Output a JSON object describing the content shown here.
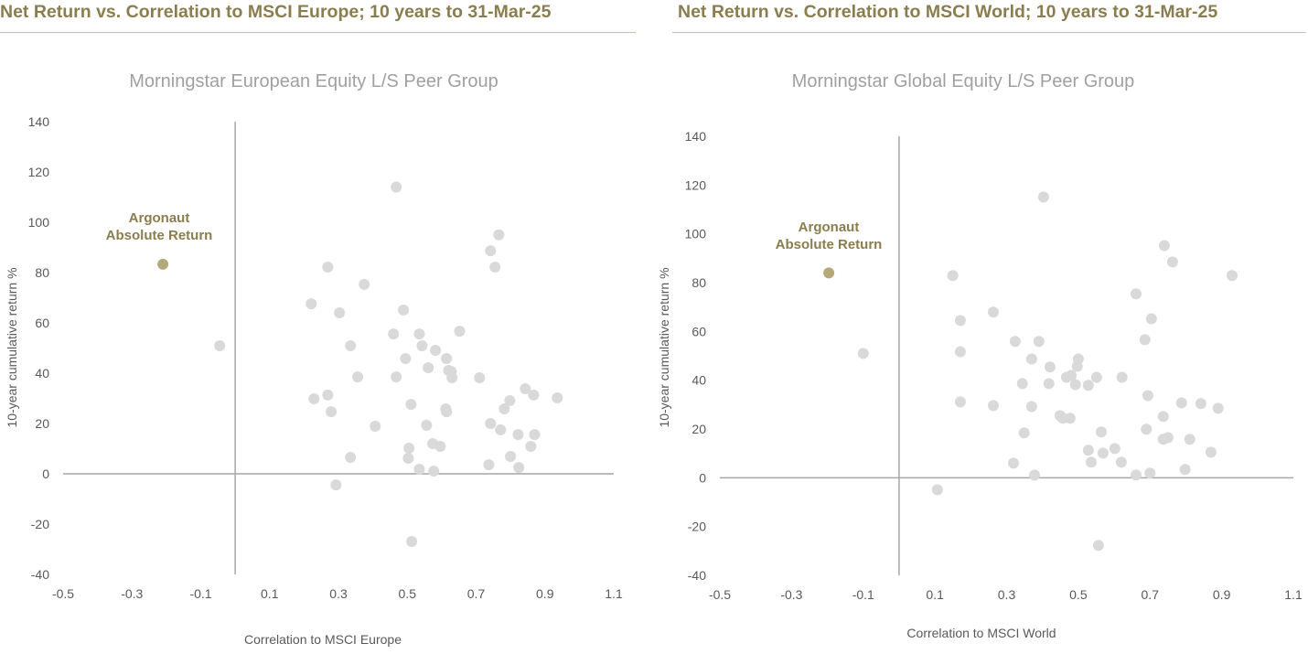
{
  "headers": [
    "Net Return vs. Correlation to MSCI Europe; 10 years to 31-Mar-25",
    "Net Return vs. Correlation to MSCI World; 10 years to 31-Mar-25"
  ],
  "colors": {
    "header": "#8a7d4e",
    "highlight": "#b5a97a",
    "peer": "#d9d9d9",
    "axis": "#a6a6a6",
    "tick": "#595959",
    "title": "#a0a0a0"
  },
  "chart_data": [
    {
      "type": "scatter",
      "title": "Morningstar European Equity L/S Peer Group",
      "xlabel": "Correlation to MSCI Europe",
      "ylabel": "10-year cumulative return %",
      "xlim": [
        -0.5,
        1.1
      ],
      "ylim": [
        -40,
        140
      ],
      "xticks": [
        "-0.5",
        "-0.3",
        "-0.1",
        "0.1",
        "0.3",
        "0.5",
        "0.7",
        "0.9",
        "1.1"
      ],
      "yticks": [
        "140",
        "120",
        "100",
        "80",
        "60",
        "40",
        "20",
        "0",
        "-20",
        "-40"
      ],
      "grid": false,
      "highlight": {
        "label_lines": [
          "Argonaut",
          "Absolute Return"
        ],
        "x": -0.21,
        "y": 83.3
      },
      "peers": [
        [
          -0.045,
          50.9
        ],
        [
          0.468,
          114
        ],
        [
          0.766,
          95
        ],
        [
          0.742,
          88.7
        ],
        [
          0.755,
          82.2
        ],
        [
          0.269,
          82.2
        ],
        [
          0.375,
          75.3
        ],
        [
          0.221,
          67.6
        ],
        [
          0.489,
          65.1
        ],
        [
          0.303,
          64
        ],
        [
          0.652,
          56.7
        ],
        [
          0.535,
          55.6
        ],
        [
          0.46,
          55.6
        ],
        [
          0.543,
          50.9
        ],
        [
          0.335,
          50.9
        ],
        [
          0.582,
          49.1
        ],
        [
          0.495,
          45.8
        ],
        [
          0.614,
          45.8
        ],
        [
          0.561,
          42.2
        ],
        [
          0.62,
          41.1
        ],
        [
          0.628,
          40.7
        ],
        [
          0.468,
          38.5
        ],
        [
          0.356,
          38.5
        ],
        [
          0.71,
          38.2
        ],
        [
          0.63,
          38.2
        ],
        [
          0.843,
          33.8
        ],
        [
          0.867,
          31.3
        ],
        [
          0.936,
          30.2
        ],
        [
          0.269,
          31.3
        ],
        [
          0.229,
          29.8
        ],
        [
          0.798,
          29.1
        ],
        [
          0.511,
          27.6
        ],
        [
          0.782,
          25.8
        ],
        [
          0.612,
          25.8
        ],
        [
          0.614,
          24.7
        ],
        [
          0.279,
          24.7
        ],
        [
          0.742,
          20
        ],
        [
          0.556,
          19.3
        ],
        [
          0.407,
          18.9
        ],
        [
          0.771,
          17.5
        ],
        [
          0.822,
          15.6
        ],
        [
          0.87,
          15.6
        ],
        [
          0.574,
          12
        ],
        [
          0.596,
          10.9
        ],
        [
          0.505,
          10.2
        ],
        [
          0.859,
          10.9
        ],
        [
          0.8,
          6.9
        ],
        [
          0.503,
          6.2
        ],
        [
          0.335,
          6.5
        ],
        [
          0.737,
          3.6
        ],
        [
          0.824,
          2.5
        ],
        [
          0.535,
          1.8
        ],
        [
          0.577,
          1.1
        ],
        [
          0.293,
          -4.4
        ],
        [
          0.513,
          -26.9
        ]
      ]
    },
    {
      "type": "scatter",
      "title": "Morningstar Global Equity L/S Peer Group",
      "xlabel": "Correlation to MSCI World",
      "ylabel": "10-year cumulative return %",
      "xlim": [
        -0.5,
        1.1
      ],
      "ylim": [
        -40,
        140
      ],
      "xticks": [
        "-0.5",
        "-0.3",
        "-0.1",
        "0.1",
        "0.3",
        "0.5",
        "0.7",
        "0.9",
        "1.1"
      ],
      "yticks": [
        "140",
        "120",
        "100",
        "80",
        "60",
        "40",
        "20",
        "0",
        "-20",
        "-40"
      ],
      "grid": false,
      "highlight": {
        "label_lines": [
          "Argonaut",
          "Absolute Return"
        ],
        "x": -0.196,
        "y": 84
      },
      "peers": [
        [
          -0.1,
          51
        ],
        [
          0.403,
          115.1
        ],
        [
          0.74,
          95.2
        ],
        [
          0.763,
          88.5
        ],
        [
          0.929,
          82.9
        ],
        [
          0.15,
          82.9
        ],
        [
          0.661,
          75.4
        ],
        [
          0.263,
          67.9
        ],
        [
          0.704,
          65.2
        ],
        [
          0.171,
          64.5
        ],
        [
          0.686,
          56.6
        ],
        [
          0.324,
          55.9
        ],
        [
          0.39,
          55.9
        ],
        [
          0.171,
          51.7
        ],
        [
          0.5,
          48.7
        ],
        [
          0.37,
          48.7
        ],
        [
          0.497,
          45.7
        ],
        [
          0.421,
          45.4
        ],
        [
          0.622,
          41.2
        ],
        [
          0.551,
          41.2
        ],
        [
          0.467,
          41.2
        ],
        [
          0.48,
          42
        ],
        [
          0.344,
          38.6
        ],
        [
          0.418,
          38.6
        ],
        [
          0.492,
          38.2
        ],
        [
          0.528,
          37.9
        ],
        [
          0.694,
          33.7
        ],
        [
          0.788,
          30.7
        ],
        [
          0.842,
          30.4
        ],
        [
          0.171,
          31.1
        ],
        [
          0.263,
          29.6
        ],
        [
          0.89,
          28.5
        ],
        [
          0.37,
          29.2
        ],
        [
          0.449,
          25.5
        ],
        [
          0.457,
          24.4
        ],
        [
          0.477,
          24.4
        ],
        [
          0.737,
          25.1
        ],
        [
          0.69,
          19.9
        ],
        [
          0.564,
          18.8
        ],
        [
          0.349,
          18.4
        ],
        [
          0.75,
          16.5
        ],
        [
          0.737,
          15.8
        ],
        [
          0.811,
          15.8
        ],
        [
          0.602,
          12
        ],
        [
          0.528,
          11.3
        ],
        [
          0.569,
          10.1
        ],
        [
          0.87,
          10.5
        ],
        [
          0.536,
          6.4
        ],
        [
          0.319,
          6
        ],
        [
          0.62,
          6.4
        ],
        [
          0.798,
          3.4
        ],
        [
          0.378,
          1.1
        ],
        [
          0.661,
          1.1
        ],
        [
          0.7,
          1.9
        ],
        [
          0.107,
          -4.9
        ],
        [
          0.556,
          -27.7
        ]
      ]
    }
  ]
}
